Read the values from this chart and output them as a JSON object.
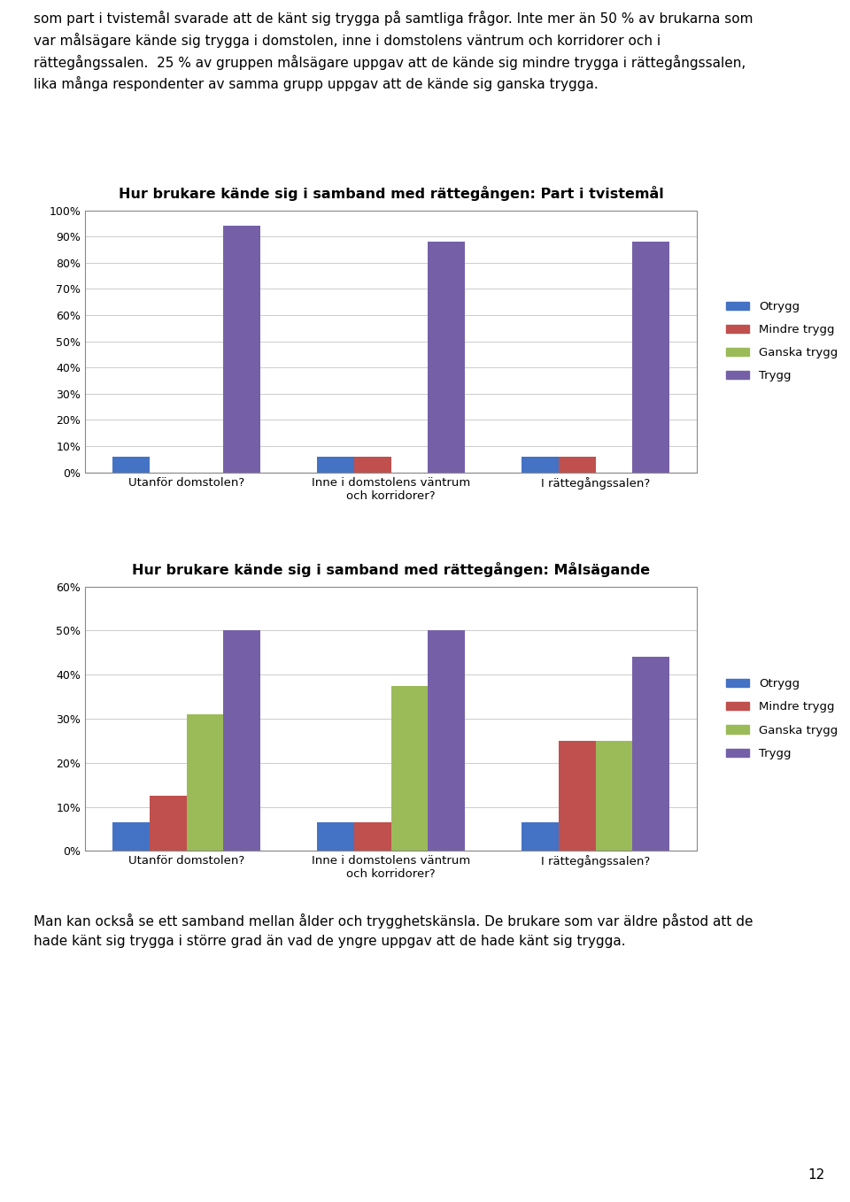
{
  "chart1": {
    "title": "Hur brukare kände sig i samband med rättegången: Part i tvistemål",
    "categories": [
      "Utanför domstolen?",
      "Inne i domstolens väntrum\noch korridorer?",
      "I rättegångssalen?"
    ],
    "series": {
      "Otrygg": [
        0.06,
        0.06,
        0.06
      ],
      "Mindre trygg": [
        0.0,
        0.06,
        0.06
      ],
      "Ganska trygg": [
        0.0,
        0.0,
        0.0
      ],
      "Trygg": [
        0.94,
        0.88,
        0.88
      ]
    },
    "ylim": [
      0,
      1.0
    ],
    "yticks": [
      0.0,
      0.1,
      0.2,
      0.3,
      0.4,
      0.5,
      0.6,
      0.7,
      0.8,
      0.9,
      1.0
    ],
    "yticklabels": [
      "0%",
      "10%",
      "20%",
      "30%",
      "40%",
      "50%",
      "60%",
      "70%",
      "80%",
      "90%",
      "100%"
    ]
  },
  "chart2": {
    "title": "Hur brukare kände sig i samband med rättegången: Målsägande",
    "categories": [
      "Utanför domstolen?",
      "Inne i domstolens väntrum\noch korridorer?",
      "I rättegångssalen?"
    ],
    "series": {
      "Otrygg": [
        0.065,
        0.065,
        0.065
      ],
      "Mindre trygg": [
        0.125,
        0.065,
        0.25
      ],
      "Ganska trygg": [
        0.31,
        0.375,
        0.25
      ],
      "Trygg": [
        0.5,
        0.5,
        0.44
      ]
    },
    "ylim": [
      0,
      0.6
    ],
    "yticks": [
      0.0,
      0.1,
      0.2,
      0.3,
      0.4,
      0.5,
      0.6
    ],
    "yticklabels": [
      "0%",
      "10%",
      "20%",
      "30%",
      "40%",
      "50%",
      "60%"
    ]
  },
  "colors": {
    "Otrygg": "#4472C4",
    "Mindre trygg": "#C0504D",
    "Ganska trygg": "#9BBB59",
    "Trygg": "#7560A8"
  },
  "legend_order": [
    "Otrygg",
    "Mindre trygg",
    "Ganska trygg",
    "Trygg"
  ],
  "text_top_line1": "som part i tvistemål svarade att de känt sig trygga på samtliga frågor. Inte mer än 50 % av brukarna som",
  "text_top_line2": "var målsägare kände sig trygga i domstolen, inne i domstolens väntrum och korridorer och i",
  "text_top_line3": "rättegångssalen.  25 % av gruppen målsägare uppgav att de kände sig mindre trygga i rättegångssalen,",
  "text_top_line4": "lika många respondenter av samma grupp uppgav att de kände sig ganska trygga.",
  "text_bottom_line1": "Man kan också se ett samband mellan ålder och trygghetskänsla. De brukare som var äldre påstod att de",
  "text_bottom_line2": "hade känt sig trygga i större grad än vad de yngre uppgav att de hade känt sig trygga.",
  "page_number": "12",
  "bar_width": 0.18
}
